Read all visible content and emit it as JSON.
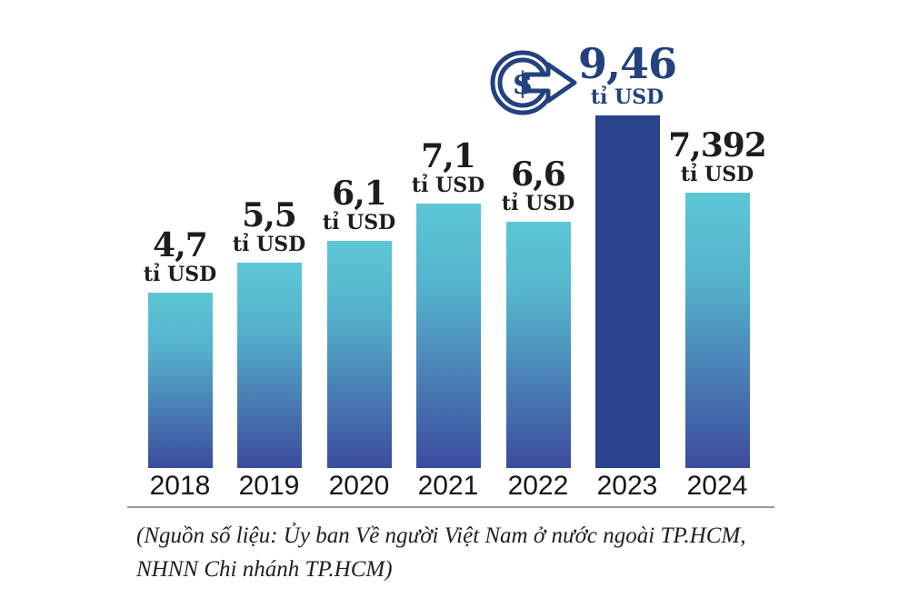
{
  "chart_data": {
    "type": "bar",
    "categories": [
      "2018",
      "2019",
      "2020",
      "2021",
      "2022",
      "2023",
      "2024"
    ],
    "values": [
      4.7,
      5.5,
      6.1,
      7.1,
      6.6,
      9.46,
      7.392
    ],
    "value_labels": [
      "4,7",
      "5,5",
      "6,1",
      "7,1",
      "6,6",
      "9,46",
      "7,392"
    ],
    "unit_label": "tỉ USD",
    "highlight_index": 5,
    "title": "",
    "xlabel": "",
    "ylabel": "",
    "ylim": [
      0,
      10
    ],
    "grid": false,
    "legend": null,
    "icon": "dollar-circle-arrow-icon",
    "colors": {
      "bar_gradient_top": "#5CC7D6",
      "bar_gradient_bottom": "#3C4B9E",
      "highlight_bar": "#28428B",
      "highlight_text": "#23407F",
      "label_text": "#1D1D1B",
      "year_text": "#161616",
      "divider": "#9B9B9B"
    }
  },
  "icon": {
    "dollar_glyph": "$"
  },
  "source": {
    "line1": "(Nguồn số liệu: Ủy ban Về người Việt Nam ở nước ngoài TP.HCM,",
    "line2": "NHNN Chi nhánh TP.HCM)"
  }
}
